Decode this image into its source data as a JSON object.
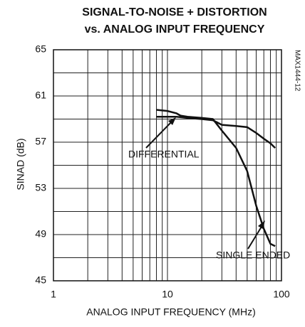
{
  "chart_data": {
    "type": "line",
    "title": [
      "SIGNAL-TO-NOISE + DISTORTION",
      "vs. ANALOG INPUT FREQUENCY"
    ],
    "xlabel": "ANALOG INPUT FREQUENCY (MHz)",
    "ylabel": "SINAD (dB)",
    "xscale": "log",
    "xlim": [
      1,
      100
    ],
    "xticks": [
      1,
      10,
      100
    ],
    "xgrid": [
      1,
      2,
      3,
      4,
      5,
      6,
      7,
      8,
      9,
      10,
      20,
      30,
      40,
      50,
      60,
      70,
      80,
      90,
      100
    ],
    "ylim": [
      45,
      65
    ],
    "yticks": [
      45,
      49,
      53,
      57,
      61,
      65
    ],
    "ygrid": [
      45,
      47,
      49,
      51,
      53,
      55,
      57,
      59,
      61,
      63,
      65
    ],
    "grid": true,
    "series": [
      {
        "name": "DIFFERENTIAL",
        "color": "#111111",
        "x": [
          8,
          10,
          12,
          15,
          20,
          25,
          30,
          40,
          50,
          60,
          70,
          80,
          88
        ],
        "values": [
          59.2,
          59.2,
          59.2,
          59.1,
          59.0,
          58.9,
          58.5,
          58.4,
          58.3,
          57.8,
          57.3,
          56.9,
          56.5
        ]
      },
      {
        "name": "SINGLE ENDED",
        "color": "#111111",
        "x": [
          8,
          10,
          12,
          13,
          15,
          20,
          25,
          30,
          40,
          50,
          60,
          70,
          80,
          88
        ],
        "values": [
          59.8,
          59.7,
          59.5,
          59.3,
          59.2,
          59.1,
          59.0,
          58.0,
          56.5,
          54.5,
          51.5,
          49.5,
          48.2,
          48.0
        ]
      }
    ],
    "annotations": [
      "MAX1444-12"
    ]
  }
}
